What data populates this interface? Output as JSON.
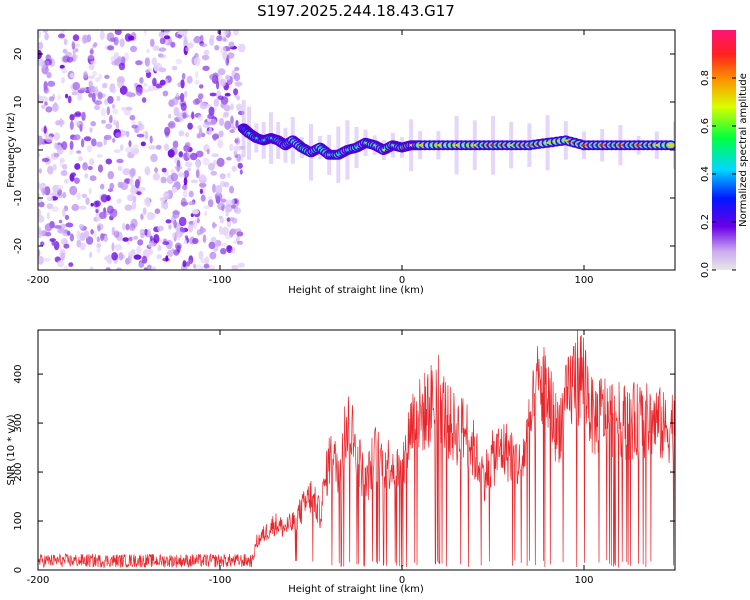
{
  "title": "S197.2025.244.18.43.G17",
  "colors": {
    "background": "#ffffff",
    "axis": "#000000",
    "snr_line": "#e8262b",
    "spec_track_core": "#e8262b",
    "spec_track_glow": "#3cf0c8",
    "spec_track_edge": "#4b00d8"
  },
  "chart_data": [
    {
      "type": "heatmap",
      "name": "spectrogram",
      "title": "S197.2025.244.18.43.G17",
      "xlabel": "Height of straight line (km)",
      "ylabel": "Frequency (Hz)",
      "xlim": [
        -200,
        150
      ],
      "ylim": [
        -25,
        25
      ],
      "xticks": [
        -200,
        -100,
        0,
        100
      ],
      "yticks": [
        -20,
        -10,
        0,
        10,
        20
      ],
      "noise_region_x": [
        -200,
        -88
      ],
      "track": {
        "x": [
          -87,
          -84,
          -80,
          -76,
          -72,
          -68,
          -64,
          -60,
          -55,
          -50,
          -45,
          -40,
          -35,
          -30,
          -25,
          -20,
          -15,
          -10,
          -5,
          0,
          5,
          10,
          20,
          30,
          40,
          50,
          60,
          70,
          80,
          90,
          100,
          110,
          120,
          130,
          140,
          150
        ],
        "freq": [
          4.5,
          3.5,
          2.5,
          2.0,
          2.5,
          2.0,
          1.0,
          2.0,
          0.5,
          -0.5,
          0.5,
          -1.0,
          -1.0,
          0.0,
          0.5,
          1.5,
          1.0,
          0.0,
          1.0,
          0.5,
          1.0,
          1.0,
          1.0,
          1.0,
          1.0,
          1.0,
          1.0,
          1.0,
          1.5,
          2.0,
          1.0,
          1.0,
          1.0,
          1.0,
          1.0,
          1.0
        ],
        "amplitude": [
          0.3,
          0.45,
          0.5,
          0.45,
          0.5,
          0.4,
          0.35,
          0.45,
          0.35,
          0.4,
          0.45,
          0.5,
          0.45,
          0.5,
          0.55,
          0.6,
          0.65,
          0.8,
          0.7,
          0.9,
          0.75,
          0.8,
          0.85,
          0.8,
          0.85,
          0.9,
          0.85,
          0.9,
          0.8,
          0.85,
          0.9,
          0.95,
          0.95,
          0.9,
          0.85,
          0.8
        ]
      },
      "colorbar": {
        "label": "Normalized spectral amplitude",
        "ticks": [
          "0.0",
          "0.2",
          "0.4",
          "0.6",
          "0.8"
        ],
        "range": [
          0,
          1
        ]
      }
    },
    {
      "type": "line",
      "name": "snr",
      "xlabel": "Height of straight line (km)",
      "ylabel": "SNR (10 * v/v)",
      "xlim": [
        -200,
        150
      ],
      "ylim": [
        0,
        490
      ],
      "xticks": [
        -200,
        -100,
        0,
        100
      ],
      "yticks": [
        0,
        100,
        200,
        300,
        400
      ],
      "grid": false,
      "series": [
        {
          "name": "SNR",
          "x": [
            -200,
            -150,
            -100,
            -82,
            -80,
            -75,
            -70,
            -65,
            -60,
            -55,
            -50,
            -45,
            -40,
            -35,
            -30,
            -25,
            -20,
            -15,
            -10,
            -5,
            0,
            5,
            10,
            15,
            20,
            25,
            30,
            35,
            40,
            45,
            50,
            55,
            60,
            65,
            70,
            75,
            80,
            85,
            90,
            95,
            100,
            105,
            110,
            115,
            120,
            125,
            130,
            135,
            140,
            145,
            150
          ],
          "values": [
            20,
            20,
            20,
            20,
            60,
            80,
            100,
            90,
            100,
            130,
            160,
            120,
            240,
            220,
            320,
            260,
            180,
            250,
            230,
            230,
            200,
            320,
            330,
            350,
            380,
            320,
            300,
            300,
            250,
            200,
            240,
            260,
            250,
            220,
            300,
            400,
            380,
            300,
            350,
            420,
            420,
            320,
            340,
            330,
            320,
            320,
            320,
            320,
            320,
            300,
            320
          ]
        }
      ]
    }
  ]
}
